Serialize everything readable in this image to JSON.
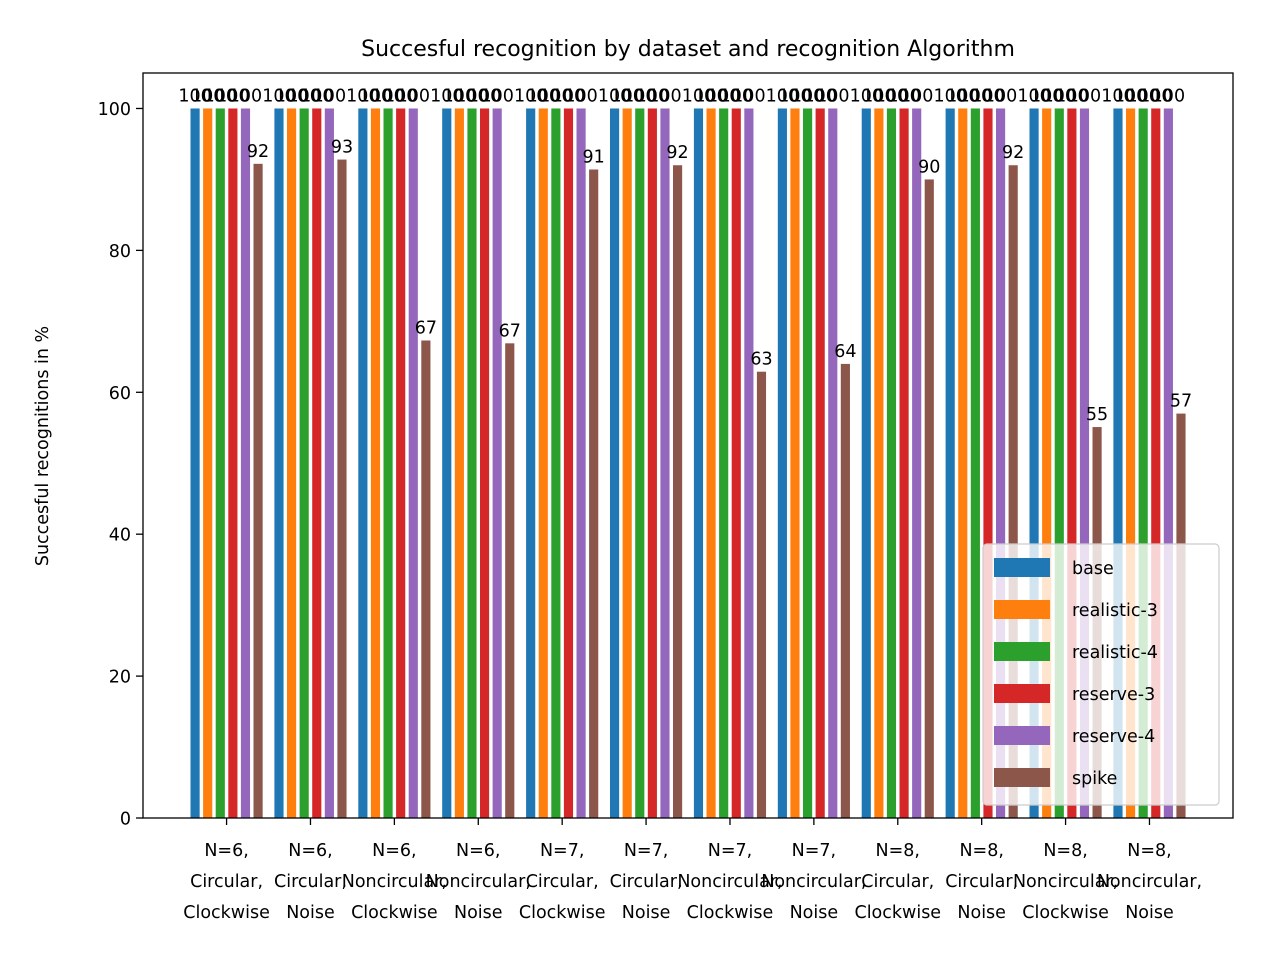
{
  "chart_data": {
    "type": "bar",
    "title": "Succesful recognition by dataset and recognition Algorithm",
    "xlabel": "",
    "ylabel": "Succesful recognitions in %",
    "ylim": [
      0,
      105
    ],
    "yticks": [
      0,
      20,
      40,
      60,
      80,
      100
    ],
    "grid": false,
    "legend_position": "lower-right",
    "categories": [
      "N=6,\nCircular,\nClockwise",
      "N=6,\nCircular,\nNoise",
      "N=6,\nNoncircular,\nClockwise",
      "N=6,\nNoncircular,\nNoise",
      "N=7,\nCircular,\nClockwise",
      "N=7,\nCircular,\nNoise",
      "N=7,\nNoncircular,\nClockwise",
      "N=7,\nNoncircular,\nNoise",
      "N=8,\nCircular,\nClockwise",
      "N=8,\nCircular,\nNoise",
      "N=8,\nNoncircular,\nClockwise",
      "N=8,\nNoncircular,\nNoise"
    ],
    "series": [
      {
        "name": "base",
        "color": "#1f77b4",
        "values": [
          100,
          100,
          100,
          100,
          100,
          100,
          100,
          100,
          100,
          100,
          100,
          100
        ],
        "labels": [
          "100",
          "100",
          "100",
          "100",
          "100",
          "100",
          "100",
          "100",
          "100",
          "100",
          "100",
          "100"
        ]
      },
      {
        "name": "realistic-3",
        "color": "#ff7f0e",
        "values": [
          100,
          100,
          100,
          100,
          100,
          100,
          100,
          100,
          100,
          100,
          100,
          100
        ],
        "labels": [
          "100",
          "100",
          "100",
          "100",
          "100",
          "100",
          "100",
          "100",
          "100",
          "100",
          "100",
          "100"
        ]
      },
      {
        "name": "realistic-4",
        "color": "#2ca02c",
        "values": [
          100,
          100,
          100,
          100,
          100,
          100,
          100,
          100,
          100,
          100,
          100,
          100
        ],
        "labels": [
          "100",
          "100",
          "100",
          "100",
          "100",
          "100",
          "100",
          "100",
          "100",
          "100",
          "100",
          "100"
        ]
      },
      {
        "name": "reserve-3",
        "color": "#d62728",
        "values": [
          100,
          100,
          100,
          100,
          100,
          100,
          100,
          100,
          100,
          100,
          100,
          100
        ],
        "labels": [
          "100",
          "100",
          "100",
          "100",
          "100",
          "100",
          "100",
          "100",
          "100",
          "100",
          "100",
          "100"
        ]
      },
      {
        "name": "reserve-4",
        "color": "#9467bd",
        "values": [
          100,
          100,
          100,
          100,
          100,
          100,
          100,
          100,
          100,
          100,
          100,
          100
        ],
        "labels": [
          "100",
          "100",
          "100",
          "100",
          "100",
          "100",
          "100",
          "100",
          "100",
          "100",
          "100",
          "100"
        ]
      },
      {
        "name": "spike",
        "color": "#8c564b",
        "values": [
          92.2,
          92.8,
          67.3,
          66.9,
          91.4,
          92.0,
          62.9,
          64.0,
          90.0,
          92.0,
          55.1,
          57.0
        ],
        "labels": [
          "92",
          "93",
          "67",
          "67",
          "91",
          "92",
          "63",
          "64",
          "90",
          "92",
          "55",
          "57"
        ]
      }
    ]
  }
}
